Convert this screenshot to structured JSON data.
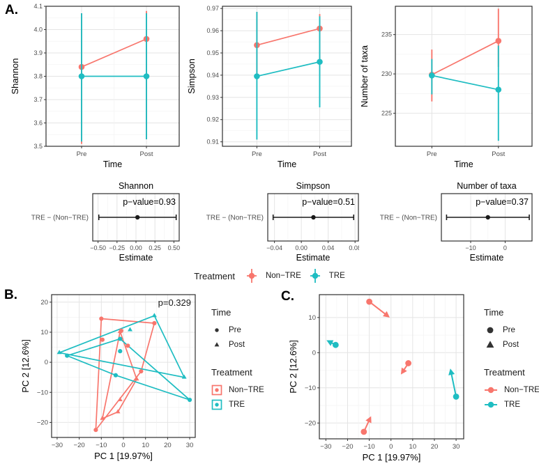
{
  "colors": {
    "non_tre": "#F8766D",
    "tre": "#1FBDC2",
    "estimate": "#1a1a1a",
    "time_key": "#333333",
    "grid_major": "#E4E4E4",
    "grid_minor": "#F3F3F3",
    "panel_border": "#2e2e2e",
    "text": "#4d4d4d"
  },
  "panels": {
    "a_label": "A.",
    "b_label": "B.",
    "c_label": "C."
  },
  "treatment_legend": {
    "title": "Treatment",
    "items": [
      {
        "label": "Non−TRE",
        "color_key": "non_tre"
      },
      {
        "label": "TRE",
        "color_key": "tre"
      }
    ]
  },
  "bc_legends": {
    "b": {
      "time_title": "Time",
      "pre_label": "Pre",
      "post_label": "Post",
      "treatment_title": "Treatment",
      "non_tre_label": "Non−TRE",
      "tre_label": "TRE"
    },
    "c": {
      "time_title": "Time",
      "pre_label": "Pre",
      "post_label": "Post",
      "treatment_title": "Treatment",
      "non_tre_label": "Non−TRE",
      "tre_label": "TRE"
    }
  },
  "chart_data": [
    {
      "id": "shannon",
      "type": "pointrange",
      "xlabel": "Time",
      "ylabel": "Shannon",
      "categories": [
        "Pre",
        "Post"
      ],
      "ylim": [
        3.5,
        4.1
      ],
      "yticks": {
        "values": [
          3.5,
          3.6,
          3.7,
          3.8,
          3.9,
          4.0,
          4.1
        ],
        "labels": [
          "3.5",
          "3.6",
          "3.7",
          "3.8",
          "3.9",
          "4.0",
          "4.1"
        ]
      },
      "series": [
        {
          "name": "Non−TRE",
          "color_key": "non_tre",
          "means": [
            3.84,
            3.96
          ],
          "lower": [
            3.51,
            3.53
          ],
          "upper": [
            4.07,
            4.08
          ]
        },
        {
          "name": "TRE",
          "color_key": "tre",
          "means": [
            3.8,
            3.8
          ],
          "lower": [
            3.52,
            3.53
          ],
          "upper": [
            4.07,
            4.07
          ]
        }
      ]
    },
    {
      "id": "simpson",
      "type": "pointrange",
      "xlabel": "Time",
      "ylabel": "Simpson",
      "categories": [
        "Pre",
        "Post"
      ],
      "ylim": [
        0.908,
        0.971
      ],
      "yticks": {
        "values": [
          0.91,
          0.92,
          0.93,
          0.94,
          0.95,
          0.96,
          0.97
        ],
        "labels": [
          "0.91",
          "0.92",
          "0.93",
          "0.94",
          "0.95",
          "0.96",
          "0.97"
        ]
      },
      "series": [
        {
          "name": "Non−TRE",
          "color_key": "non_tre",
          "means": [
            0.9535,
            0.961
          ],
          "lower": [
            0.938,
            0.9445
          ],
          "upper": [
            0.9685,
            0.9675
          ]
        },
        {
          "name": "TRE",
          "color_key": "tre",
          "means": [
            0.9395,
            0.946
          ],
          "lower": [
            0.911,
            0.9255
          ],
          "upper": [
            0.9685,
            0.9665
          ]
        }
      ]
    },
    {
      "id": "taxa",
      "type": "pointrange",
      "xlabel": "Time",
      "ylabel": "Number of taxa",
      "categories": [
        "Pre",
        "Post"
      ],
      "ylim": [
        220.8,
        238.6
      ],
      "yticks": {
        "values": [
          225,
          230,
          235
        ],
        "labels": [
          "225",
          "230",
          "235"
        ]
      },
      "series": [
        {
          "name": "Non−TRE",
          "color_key": "non_tre",
          "means": [
            229.9,
            234.2
          ],
          "lower": [
            226.5,
            230.9
          ],
          "upper": [
            233.1,
            238.3
          ]
        },
        {
          "name": "TRE",
          "color_key": "tre",
          "means": [
            229.8,
            228.0
          ],
          "lower": [
            227.4,
            221.5
          ],
          "upper": [
            231.9,
            233.6
          ]
        }
      ]
    },
    {
      "id": "forest_shannon",
      "type": "forest",
      "title": "Shannon",
      "p_label": "p−value=0.93",
      "row_label": "TRE − (Non−TRE)",
      "xlabel": "Estimate",
      "xlim": [
        -0.57,
        0.57
      ],
      "xticks": {
        "values": [
          -0.5,
          -0.25,
          0,
          0.25,
          0.5
        ],
        "labels": [
          "−0.50",
          "−0.25",
          "0.00",
          "0.25",
          "0.50"
        ]
      },
      "estimate": 0.02,
      "ci": [
        -0.49,
        0.53
      ]
    },
    {
      "id": "forest_simpson",
      "type": "forest",
      "title": "Simpson",
      "p_label": "p−value=0.51",
      "row_label": "TRE − (Non−TRE)",
      "xlabel": "Estimate",
      "xlim": [
        -0.05,
        0.085
      ],
      "xticks": {
        "values": [
          -0.04,
          0,
          0.04,
          0.08
        ],
        "labels": [
          "−0.04",
          "0.00",
          "0.04",
          "0.08"
        ]
      },
      "estimate": 0.018,
      "ci": [
        -0.042,
        0.078
      ]
    },
    {
      "id": "forest_taxa",
      "type": "forest",
      "title": "Number of taxa",
      "p_label": "p−value=0.37",
      "row_label": "TRE − (Non−TRE)",
      "xlabel": "Estimate",
      "xlim": [
        -18.5,
        7.8
      ],
      "xticks": {
        "values": [
          -10,
          0
        ],
        "labels": [
          "−10",
          "0"
        ]
      },
      "estimate": -5,
      "ci": [
        -17,
        7
      ]
    },
    {
      "id": "pca_hulls",
      "type": "scatter-hulls",
      "annotation": "p=0.329",
      "xlabel": "PC 1 [19.97%]",
      "ylabel": "PC 2 [12.6%]",
      "xlim": [
        -32.5,
        32.5
      ],
      "ylim": [
        -25,
        22.5
      ],
      "xticks": {
        "values": [
          -30,
          -20,
          -10,
          0,
          10,
          20,
          30
        ],
        "labels": [
          "−30",
          "−20",
          "−10",
          "0",
          "10",
          "20",
          "30"
        ]
      },
      "yticks": {
        "values": [
          -20,
          -10,
          0,
          10,
          20
        ],
        "labels": [
          "−20",
          "−10",
          "0",
          "10",
          "20"
        ]
      },
      "groups": [
        {
          "treatment": "Non−TRE",
          "color_key": "non_tre",
          "pre_points": [
            [
              -10,
              14.5
            ],
            [
              -9.5,
              7.5
            ],
            [
              -1,
              10.5
            ],
            [
              2,
              5.5
            ],
            [
              8,
              -3
            ],
            [
              14,
              13
            ],
            [
              -12.5,
              -22.5
            ]
          ],
          "post_points": [
            [
              -1.5,
              10.2
            ],
            [
              6,
              -5.6
            ],
            [
              -1.5,
              -12.5
            ],
            [
              -2.5,
              -16.5
            ],
            [
              -9.5,
              -18.7
            ]
          ],
          "pre_hull": [
            [
              -10,
              14.5
            ],
            [
              14,
              13
            ],
            [
              8,
              -3
            ],
            [
              -12.5,
              -22.5
            ]
          ],
          "post_hull": [
            [
              -1.5,
              10.2
            ],
            [
              6,
              -5.6
            ],
            [
              -2.5,
              -16.5
            ],
            [
              -9.5,
              -18.7
            ]
          ]
        },
        {
          "treatment": "TRE",
          "color_key": "tre",
          "pre_points": [
            [
              -25.5,
              2.2
            ],
            [
              -1.5,
              7.8
            ],
            [
              -1.5,
              3.7
            ],
            [
              -3.5,
              -4.3
            ],
            [
              30,
              -12.5
            ]
          ],
          "post_points": [
            [
              -29,
              3.2
            ],
            [
              3,
              10.8
            ],
            [
              14,
              15.5
            ],
            [
              27.5,
              -5
            ]
          ],
          "pre_hull": [
            [
              -25.5,
              2.2
            ],
            [
              -1.5,
              7.8
            ],
            [
              30,
              -12.5
            ],
            [
              -3.5,
              -4.3
            ]
          ],
          "post_hull": [
            [
              -29,
              3.2
            ],
            [
              14,
              15.5
            ],
            [
              27.5,
              -5
            ]
          ]
        }
      ]
    },
    {
      "id": "pca_arrows",
      "type": "scatter-arrows",
      "xlabel": "PC 1 [19.97%]",
      "ylabel": "PC 2 [12.6%]",
      "xlim": [
        -33,
        33.5
      ],
      "ylim": [
        -24.5,
        16.5
      ],
      "xticks": {
        "values": [
          -30,
          -20,
          -10,
          0,
          10,
          20,
          30
        ],
        "labels": [
          "−30",
          "−20",
          "−10",
          "0",
          "10",
          "20",
          "30"
        ]
      },
      "yticks": {
        "values": [
          -20,
          -10,
          0,
          10
        ],
        "labels": [
          "−20",
          "−10",
          "0",
          "10"
        ]
      },
      "pairs": [
        {
          "color_key": "non_tre",
          "pre": [
            -10,
            14.5
          ],
          "post": [
            -1.2,
            10.3
          ]
        },
        {
          "color_key": "non_tre",
          "pre": [
            8,
            -3
          ],
          "post": [
            5,
            -5.8
          ]
        },
        {
          "color_key": "non_tre",
          "pre": [
            -12.5,
            -22.5
          ],
          "post": [
            -9.5,
            -18.5
          ]
        },
        {
          "color_key": "tre",
          "pre": [
            -25.5,
            2.2
          ],
          "post": [
            -29,
            3.3
          ]
        },
        {
          "color_key": "tre",
          "pre": [
            30,
            -12.5
          ],
          "post": [
            27.5,
            -5
          ]
        }
      ]
    }
  ]
}
